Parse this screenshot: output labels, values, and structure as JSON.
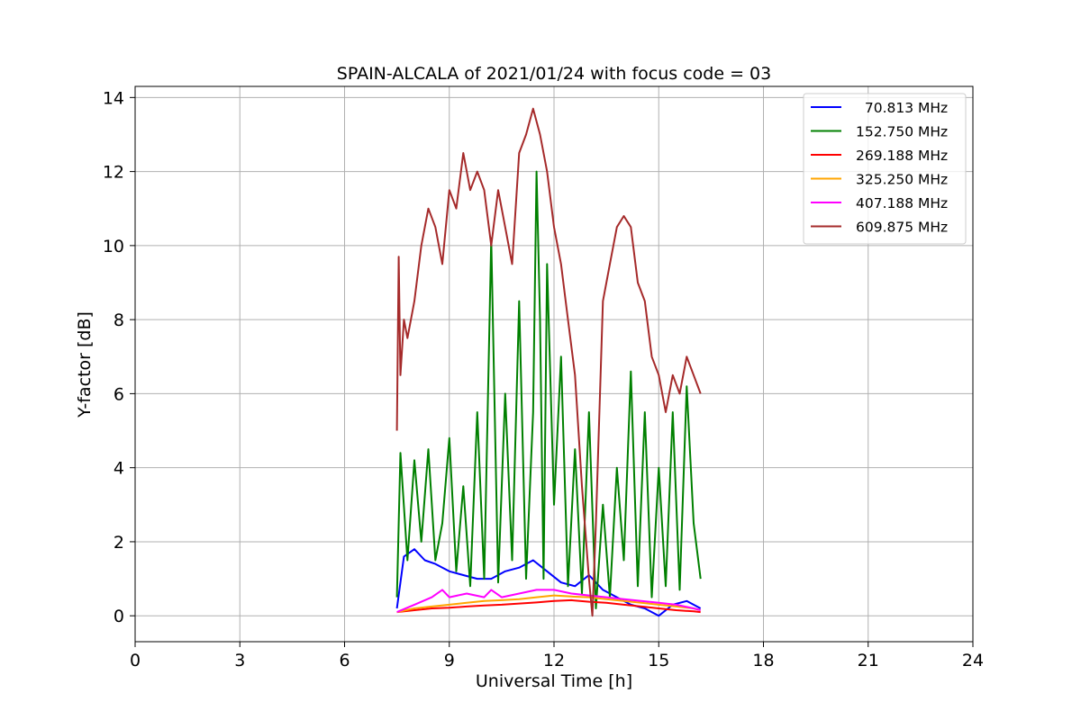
{
  "chart_data": {
    "type": "line",
    "title": "SPAIN-ALCALA of 2021/01/24 with focus code = 03",
    "xlabel": "Universal Time [h]",
    "ylabel": "Y-factor [dB]",
    "xlim": [
      0,
      24
    ],
    "ylim": [
      -0.7,
      14.3
    ],
    "xticks": [
      0,
      3,
      6,
      9,
      12,
      15,
      18,
      21,
      24
    ],
    "yticks": [
      0,
      2,
      4,
      6,
      8,
      10,
      12,
      14
    ],
    "grid": true,
    "legend_position": "top-right",
    "series": [
      {
        "name": "  70.813 MHz",
        "color": "#0000ff",
        "x": [
          7.5,
          7.7,
          8.0,
          8.3,
          8.6,
          9.0,
          9.4,
          9.8,
          10.2,
          10.6,
          11.0,
          11.4,
          11.8,
          12.2,
          12.6,
          13.0,
          13.4,
          13.8,
          14.2,
          14.6,
          15.0,
          15.4,
          15.8,
          16.2
        ],
        "y": [
          0.2,
          1.6,
          1.8,
          1.5,
          1.4,
          1.2,
          1.1,
          1.0,
          1.0,
          1.2,
          1.3,
          1.5,
          1.2,
          0.9,
          0.8,
          1.1,
          0.7,
          0.5,
          0.3,
          0.2,
          0.0,
          0.3,
          0.4,
          0.2
        ]
      },
      {
        "name": "152.750 MHz",
        "color": "#008000",
        "x": [
          7.5,
          7.6,
          7.8,
          8.0,
          8.2,
          8.4,
          8.6,
          8.8,
          9.0,
          9.2,
          9.4,
          9.6,
          9.8,
          10.0,
          10.2,
          10.4,
          10.6,
          10.8,
          11.0,
          11.2,
          11.4,
          11.5,
          11.6,
          11.7,
          11.8,
          12.0,
          12.2,
          12.4,
          12.6,
          12.8,
          13.0,
          13.2,
          13.4,
          13.6,
          13.8,
          14.0,
          14.2,
          14.4,
          14.6,
          14.8,
          15.0,
          15.2,
          15.4,
          15.6,
          15.8,
          16.0,
          16.2
        ],
        "y": [
          0.5,
          4.4,
          1.5,
          4.2,
          2.0,
          4.5,
          1.5,
          2.5,
          4.8,
          1.2,
          3.5,
          0.8,
          5.5,
          1.0,
          10.2,
          0.9,
          6.0,
          1.5,
          8.5,
          1.0,
          5.5,
          12.0,
          8.0,
          1.0,
          9.5,
          3.0,
          7.0,
          0.8,
          4.5,
          0.6,
          5.5,
          0.2,
          3.0,
          0.5,
          4.0,
          1.5,
          6.6,
          0.8,
          5.5,
          0.5,
          4.0,
          0.8,
          5.5,
          0.7,
          6.2,
          2.5,
          1.0
        ]
      },
      {
        "name": "269.188 MHz",
        "color": "#ff0000",
        "x": [
          7.5,
          8.0,
          8.5,
          9.0,
          9.5,
          10.0,
          10.5,
          11.0,
          11.5,
          12.0,
          12.5,
          13.0,
          13.5,
          14.0,
          14.5,
          15.0,
          15.5,
          16.0,
          16.2
        ],
        "y": [
          0.1,
          0.15,
          0.2,
          0.22,
          0.25,
          0.28,
          0.3,
          0.33,
          0.36,
          0.4,
          0.42,
          0.38,
          0.35,
          0.3,
          0.25,
          0.2,
          0.15,
          0.12,
          0.1
        ]
      },
      {
        "name": "325.250 MHz",
        "color": "#ffa500",
        "x": [
          7.5,
          8.0,
          8.5,
          9.0,
          9.5,
          10.0,
          10.5,
          11.0,
          11.5,
          12.0,
          12.5,
          13.0,
          13.5,
          14.0,
          14.5,
          15.0,
          15.5,
          16.0,
          16.2
        ],
        "y": [
          0.1,
          0.2,
          0.25,
          0.3,
          0.35,
          0.4,
          0.42,
          0.45,
          0.5,
          0.55,
          0.52,
          0.5,
          0.45,
          0.4,
          0.35,
          0.3,
          0.25,
          0.2,
          0.15
        ]
      },
      {
        "name": "407.188 MHz",
        "color": "#ff00ff",
        "x": [
          7.5,
          8.0,
          8.5,
          8.8,
          9.0,
          9.5,
          10.0,
          10.2,
          10.5,
          11.0,
          11.5,
          12.0,
          12.5,
          13.0,
          13.5,
          14.0,
          14.5,
          15.0,
          15.5,
          16.0,
          16.2
        ],
        "y": [
          0.1,
          0.3,
          0.5,
          0.7,
          0.5,
          0.6,
          0.5,
          0.7,
          0.5,
          0.6,
          0.7,
          0.7,
          0.6,
          0.55,
          0.5,
          0.45,
          0.4,
          0.35,
          0.3,
          0.2,
          0.15
        ]
      },
      {
        "name": "609.875 MHz",
        "color": "#a52a2a",
        "x": [
          7.5,
          7.55,
          7.6,
          7.7,
          7.8,
          8.0,
          8.2,
          8.4,
          8.6,
          8.8,
          9.0,
          9.2,
          9.4,
          9.6,
          9.8,
          10.0,
          10.2,
          10.4,
          10.6,
          10.8,
          11.0,
          11.2,
          11.4,
          11.6,
          11.8,
          12.0,
          12.2,
          12.4,
          12.6,
          12.8,
          13.0,
          13.1,
          13.2,
          13.4,
          13.6,
          13.8,
          14.0,
          14.2,
          14.4,
          14.6,
          14.8,
          15.0,
          15.2,
          15.4,
          15.6,
          15.8,
          16.0,
          16.2
        ],
        "y": [
          5.0,
          9.7,
          6.5,
          8.0,
          7.5,
          8.5,
          10.0,
          11.0,
          10.5,
          9.5,
          11.5,
          11.0,
          12.5,
          11.5,
          12.0,
          11.5,
          10.0,
          11.5,
          10.5,
          9.5,
          12.5,
          13.0,
          13.7,
          13.0,
          12.0,
          10.5,
          9.5,
          8.0,
          6.5,
          3.5,
          1.0,
          0.0,
          2.5,
          8.5,
          9.5,
          10.5,
          10.8,
          10.5,
          9.0,
          8.5,
          7.0,
          6.5,
          5.5,
          6.5,
          6.0,
          7.0,
          6.5,
          6.0
        ]
      }
    ]
  }
}
